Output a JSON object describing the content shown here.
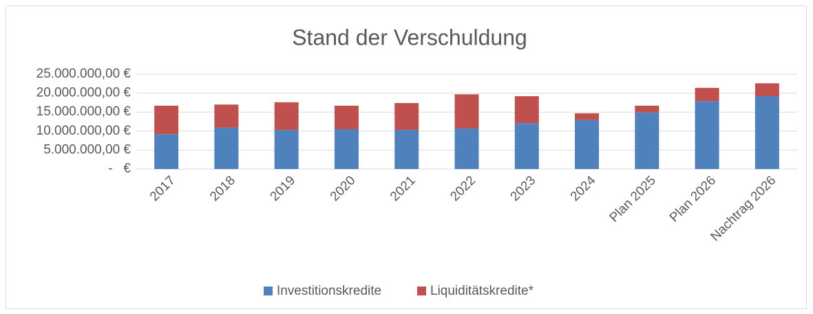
{
  "chart_data": {
    "type": "stacked_bar",
    "title": "Stand der Verschuldung",
    "categories": [
      "2017",
      "2018",
      "2019",
      "2020",
      "2021",
      "2022",
      "2023",
      "2024",
      "Plan 2025",
      "Plan 2026",
      "Nachtrag 2026"
    ],
    "series": [
      {
        "name": "Investitionskredite",
        "color": "#4f81bd",
        "values": [
          9200000,
          10900000,
          10300000,
          10500000,
          10300000,
          10700000,
          12100000,
          12900000,
          14900000,
          17900000,
          19200000
        ]
      },
      {
        "name": "Liquiditätskredite*",
        "color": "#c0504d",
        "values": [
          7500000,
          6100000,
          7300000,
          6200000,
          7100000,
          9000000,
          7100000,
          1800000,
          1800000,
          3500000,
          3400000
        ]
      }
    ],
    "ylim": [
      0,
      25000000
    ],
    "yticks": [
      {
        "value": 0,
        "label": "-   €"
      },
      {
        "value": 5000000,
        "label": "5.000.000,00 €"
      },
      {
        "value": 10000000,
        "label": "10.000.000,00 €"
      },
      {
        "value": 15000000,
        "label": "15.000.000,00 €"
      },
      {
        "value": 20000000,
        "label": "20.000.000,00 €"
      },
      {
        "value": 25000000,
        "label": "25.000.000,00 €"
      }
    ],
    "grid": true,
    "legend": "bottom"
  }
}
